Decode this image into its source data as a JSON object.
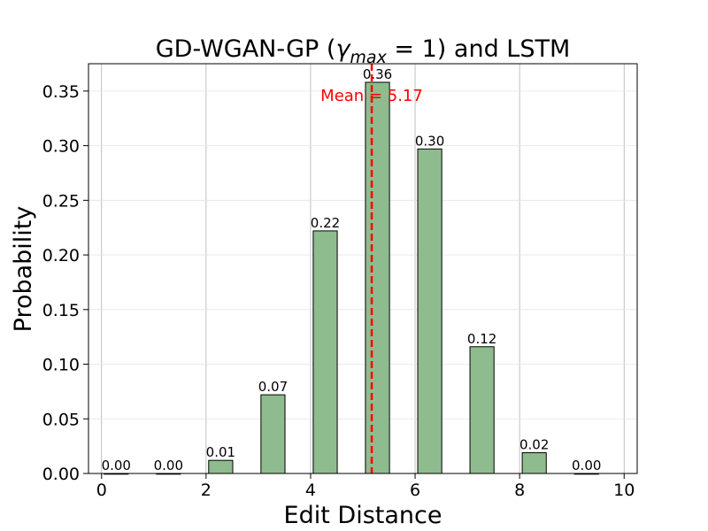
{
  "chart_data": {
    "type": "bar",
    "title_main": "GD-WGAN-GP (",
    "title_gamma": "γ",
    "title_sub": "max",
    "title_rest": " = 1) and LSTM",
    "xlabel": "Edit Distance",
    "ylabel": "Probability",
    "x": [
      0.28,
      1.28,
      2.28,
      3.28,
      4.28,
      5.28,
      6.28,
      7.28,
      8.28,
      9.28
    ],
    "values": [
      0.0,
      0.0,
      0.012,
      0.072,
      0.222,
      0.358,
      0.297,
      0.116,
      0.019,
      0.0
    ],
    "data_labels": [
      "0.00",
      "0.00",
      "0.01",
      "0.07",
      "0.22",
      "0.36",
      "0.30",
      "0.12",
      "0.02",
      "0.00"
    ],
    "bar_width": 0.46,
    "xlim": [
      -0.25,
      10.25
    ],
    "ylim": [
      0,
      0.375
    ],
    "xticks": [
      0,
      2,
      4,
      6,
      8,
      10
    ],
    "xtick_labels": [
      "0",
      "2",
      "4",
      "6",
      "8",
      "10"
    ],
    "yticks": [
      0,
      0.05,
      0.1,
      0.15,
      0.2,
      0.25,
      0.3,
      0.35
    ],
    "ytick_labels": [
      "0.00",
      "0.05",
      "0.10",
      "0.15",
      "0.20",
      "0.25",
      "0.30",
      "0.35"
    ],
    "mean": 5.17,
    "mean_label": "Mean = 5.17",
    "grid": true,
    "colors": {
      "bar": "#8fbc8f",
      "edge": "#000000",
      "mean": "#ff0000"
    }
  }
}
